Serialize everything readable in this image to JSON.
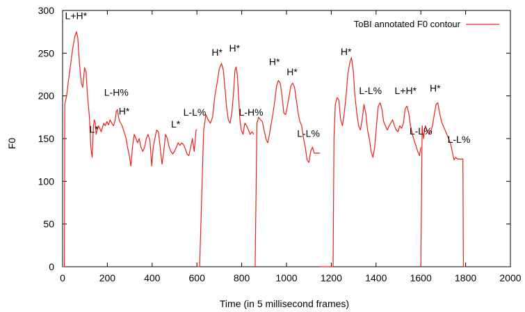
{
  "chart_data": {
    "type": "line",
    "title": "",
    "xlabel": "Time (in 5 millisecond frames)",
    "ylabel": "F0",
    "xlim": [
      0,
      2000
    ],
    "ylim": [
      0,
      300
    ],
    "x_ticks": [
      0,
      200,
      400,
      600,
      800,
      1000,
      1200,
      1400,
      1600,
      1800,
      2000
    ],
    "y_ticks": [
      0,
      50,
      100,
      150,
      200,
      250,
      300
    ],
    "grid": false,
    "legend_position": "top-right",
    "series": [
      {
        "name": "ToBI annotated F0 contour",
        "color": "#e8201a",
        "segments": [
          {
            "x": [
              0,
              8,
              10,
              18,
              25,
              35,
              45,
              55,
              62,
              68,
              72,
              78,
              84,
              90,
              98,
              105,
              110,
              115,
              120,
              126,
              132,
              138,
              142,
              146,
              150,
              155,
              160,
              166,
              172,
              178,
              184,
              190,
              198,
              205,
              212,
              220,
              228,
              235,
              240,
              245,
              250,
              255,
              260,
              266,
              272,
              278,
              284,
              290,
              298,
              305,
              312,
              320,
              328,
              335,
              342,
              350,
              358,
              366,
              374,
              382,
              390,
              398,
              405,
              412,
              420,
              428,
              436,
              444,
              452,
              460,
              468,
              476,
              484,
              492,
              500,
              508,
              516,
              524,
              532,
              540,
              548,
              556,
              564,
              572,
              580,
              588,
              596,
              600
            ],
            "y": [
              0,
              0,
              190,
              200,
              215,
              235,
              255,
              270,
              275,
              268,
              250,
              230,
              215,
              210,
              233,
              228,
              205,
              190,
              175,
              140,
              128,
              165,
              172,
              168,
              155,
              160,
              165,
              162,
              158,
              163,
              168,
              165,
              170,
              166,
              172,
              168,
              165,
              172,
              182,
              184,
              175,
              170,
              168,
              165,
              160,
              155,
              150,
              140,
              130,
              118,
              140,
              155,
              150,
              145,
              150,
              140,
              135,
              140,
              150,
              155,
              148,
              118,
              140,
              150,
              160,
              158,
              140,
              120,
              135,
              155,
              150,
              140,
              135,
              132,
              135,
              140,
              145,
              142,
              145,
              143,
              138,
              132,
              130,
              140,
              150,
              135,
              160,
              160
            ]
          },
          {
            "x": [
              600,
              612,
              630,
              640,
              650,
              660,
              670,
              680,
              690,
              700,
              710,
              718,
              725,
              732,
              740,
              748,
              756,
              764,
              770,
              775,
              780,
              786,
              792,
              798,
              806,
              814,
              822,
              830,
              838,
              846,
              854
            ],
            "y": [
              0,
              0,
              160,
              178,
              172,
              168,
              175,
              200,
              215,
              232,
              238,
              230,
              210,
              188,
              172,
              168,
              180,
              205,
              230,
              234,
              225,
              200,
              172,
              160,
              155,
              168,
              165,
              160,
              155,
              158,
              155
            ]
          },
          {
            "x": [
              860,
              868,
              876,
              884,
              892,
              900,
              908,
              916,
              924,
              932,
              940,
              948,
              956,
              964,
              972,
              980,
              988,
              996,
              1004,
              1012,
              1020,
              1028,
              1036,
              1044,
              1052,
              1060,
              1068,
              1076,
              1084,
              1092,
              1100,
              1108,
              1116,
              1124,
              1132,
              1140,
              1150
            ],
            "y": [
              0,
              168,
              175,
              172,
              170,
              160,
              150,
              145,
              155,
              168,
              180,
              195,
              212,
              218,
              215,
              200,
              180,
              178,
              188,
              200,
              212,
              215,
              210,
              195,
              180,
              170,
              165,
              150,
              140,
              125,
              122,
              135,
              140,
              133,
              133,
              133,
              133
            ]
          },
          {
            "x": [
              1150,
              1152,
              1208,
              1212,
              1218,
              1226,
              1234,
              1242,
              1250,
              1258,
              1266,
              1274,
              1282,
              1290,
              1298,
              1306,
              1314,
              1322,
              1330,
              1338,
              1346,
              1354,
              1362,
              1370,
              1378,
              1386,
              1394,
              1402,
              1410,
              1418,
              1426,
              1434,
              1442,
              1450,
              1458,
              1466,
              1474,
              1482,
              1490,
              1498,
              1506,
              1514,
              1522,
              1530,
              1538,
              1546,
              1554,
              1562,
              1570,
              1578,
              1586,
              1594,
              1600
            ],
            "y": [
              0,
              0,
              0,
              150,
              190,
              198,
              195,
              172,
              165,
              180,
              200,
              225,
              238,
              245,
              230,
              200,
              180,
              165,
              160,
              172,
              190,
              180,
              160,
              150,
              135,
              128,
              140,
              165,
              188,
              192,
              185,
              170,
              165,
              160,
              165,
              168,
              172,
              165,
              160,
              158,
              165,
              162,
              168,
              185,
              188,
              180,
              165,
              155,
              148,
              142,
              135,
              130,
              140
            ]
          },
          {
            "x": [
              1600,
              1606,
              1612,
              1620,
              1628,
              1636,
              1644,
              1652,
              1660,
              1668,
              1676,
              1684,
              1692,
              1700,
              1708,
              1716,
              1724,
              1732,
              1740,
              1748,
              1756,
              1764,
              1772,
              1780,
              1788,
              1790,
              1800
            ],
            "y": [
              0,
              165,
              150,
              165,
              160,
              155,
              158,
              165,
              178,
              190,
              192,
              180,
              170,
              165,
              160,
              155,
              150,
              145,
              135,
              125,
              128,
              126,
              126,
              126,
              126,
              0,
              0
            ]
          }
        ]
      }
    ],
    "annotations": [
      {
        "text": "L+H*",
        "x": 60,
        "y": 290
      },
      {
        "text": "L-H%",
        "x": 240,
        "y": 200
      },
      {
        "text": "H*",
        "x": 275,
        "y": 178
      },
      {
        "text": "L*",
        "x": 140,
        "y": 157
      },
      {
        "text": "L*",
        "x": 505,
        "y": 163
      },
      {
        "text": "L-L%",
        "x": 590,
        "y": 177
      },
      {
        "text": "H*",
        "x": 690,
        "y": 247
      },
      {
        "text": "H*",
        "x": 768,
        "y": 252
      },
      {
        "text": "L-H%",
        "x": 842,
        "y": 177
      },
      {
        "text": "H*",
        "x": 946,
        "y": 236
      },
      {
        "text": "H*",
        "x": 1025,
        "y": 224
      },
      {
        "text": "L-L%",
        "x": 1098,
        "y": 152
      },
      {
        "text": "H*",
        "x": 1266,
        "y": 248
      },
      {
        "text": "L-L%",
        "x": 1375,
        "y": 202
      },
      {
        "text": "L+H*",
        "x": 1532,
        "y": 202
      },
      {
        "text": "H*",
        "x": 1664,
        "y": 205
      },
      {
        "text": "L-L%",
        "x": 1600,
        "y": 155
      },
      {
        "text": "L-L%",
        "x": 1770,
        "y": 145
      }
    ]
  }
}
